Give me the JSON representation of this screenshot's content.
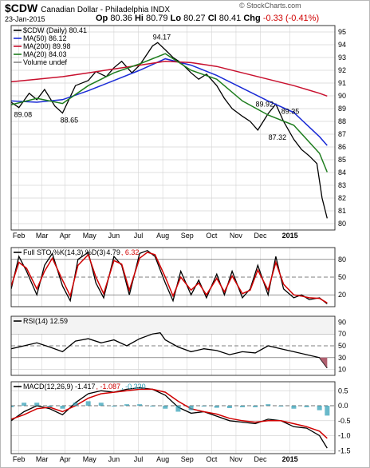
{
  "header": {
    "symbol": "$CDW",
    "name": "Canadian Dollar - Philadelphia INDX",
    "date": "23-Jan-2015",
    "open_label": "Op",
    "open": "80.36",
    "high_label": "Hi",
    "high": "80.79",
    "low_label": "Lo",
    "low": "80.27",
    "close_label": "Cl",
    "close": "80.41",
    "chg_label": "Chg",
    "chg": "-0.33 (-0.41%)",
    "site": "© StockCharts.com"
  },
  "chart_data": [
    {
      "type": "line",
      "title": "$CDW (Daily) 80.41",
      "legend": [
        {
          "label": "$CDW (Daily) 80.41",
          "color": "#000000"
        },
        {
          "label": "MA(50) 86.12",
          "color": "#1a2bd6"
        },
        {
          "label": "MA(200) 89.98",
          "color": "#c8102e"
        },
        {
          "label": "MA(20) 84.03",
          "color": "#1e7d1e"
        },
        {
          "label": "Volume undef",
          "color": "#888888"
        }
      ],
      "legend_placement": "top-left",
      "ylim": [
        79.5,
        95.5
      ],
      "yticks": [
        80,
        81,
        82,
        83,
        84,
        85,
        86,
        87,
        88,
        89,
        90,
        91,
        92,
        93,
        94,
        95
      ],
      "x_labels": [
        "Feb",
        "Mar",
        "Apr",
        "May",
        "Jun",
        "Jul",
        "Aug",
        "Sep",
        "Oct",
        "Nov",
        "Dec",
        "2015"
      ],
      "annotations": [
        {
          "text": "89.08",
          "x": 0.3,
          "y": 89.08
        },
        {
          "text": "88.65",
          "x": 2.1,
          "y": 88.65
        },
        {
          "text": "94.17",
          "x": 5.7,
          "y": 94.17
        },
        {
          "text": "89.92",
          "x": 9.7,
          "y": 89.92
        },
        {
          "text": "89.35",
          "x": 10.7,
          "y": 89.35
        },
        {
          "text": "87.32",
          "x": 10.2,
          "y": 87.32
        }
      ],
      "series": [
        {
          "name": "$CDW (Daily)",
          "color": "#000000",
          "x": [
            0,
            0.3,
            0.7,
            1,
            1.3,
            1.7,
            2,
            2.2,
            2.5,
            3,
            3.3,
            3.7,
            4,
            4.3,
            4.7,
            5,
            5.3,
            5.5,
            5.7,
            6,
            6.3,
            6.6,
            7,
            7.3,
            7.6,
            8,
            8.3,
            8.6,
            9,
            9.3,
            9.6,
            10,
            10.3,
            10.6,
            11,
            11.3,
            11.6,
            11.9,
            12.1,
            12.3
          ],
          "y": [
            89.5,
            89.08,
            90.2,
            89.7,
            90.5,
            89.2,
            88.65,
            89.5,
            90.8,
            91.2,
            91.9,
            91.5,
            92.2,
            92.7,
            91.8,
            92.4,
            93.3,
            93.9,
            94.17,
            93.6,
            93.0,
            92.6,
            91.8,
            91.3,
            91.7,
            90.8,
            89.8,
            89.0,
            88.4,
            88.0,
            87.32,
            88.6,
            89.35,
            88.0,
            86.6,
            85.8,
            85.3,
            84.7,
            82.0,
            80.41
          ]
        },
        {
          "name": "MA(50)",
          "color": "#1a2bd6",
          "x": [
            0,
            1,
            2,
            3,
            4,
            5,
            6,
            7,
            8,
            9,
            10,
            11,
            12,
            12.3
          ],
          "y": [
            89.6,
            89.5,
            89.7,
            90.4,
            91.2,
            92.0,
            92.9,
            92.4,
            91.6,
            90.6,
            89.6,
            88.7,
            86.8,
            86.12
          ]
        },
        {
          "name": "MA(200)",
          "color": "#c8102e",
          "x": [
            0,
            1,
            2,
            3,
            4,
            5,
            6,
            7,
            8,
            9,
            10,
            11,
            12,
            12.3
          ],
          "y": [
            91.1,
            91.3,
            91.5,
            91.8,
            92.1,
            92.4,
            92.7,
            92.6,
            92.3,
            91.8,
            91.3,
            90.8,
            90.2,
            89.98
          ]
        },
        {
          "name": "MA(20)",
          "color": "#1e7d1e",
          "x": [
            0,
            1,
            2,
            3,
            4,
            5,
            6,
            7,
            8,
            9,
            10,
            11,
            12,
            12.3
          ],
          "y": [
            89.3,
            89.8,
            89.4,
            90.8,
            91.8,
            92.5,
            93.3,
            92.0,
            91.3,
            89.6,
            88.5,
            87.7,
            85.5,
            84.03
          ]
        }
      ]
    },
    {
      "type": "line",
      "title": "Full STO %K(14,3) %D(3) 4.79, 6.32",
      "legend": [
        {
          "label": "Full STO %K(14,3) %D(3)",
          "color": "#000000"
        },
        {
          "label": "4.79",
          "color": "#000000"
        },
        {
          "label": "6.32",
          "color": "#d00000"
        }
      ],
      "ylim": [
        0,
        100
      ],
      "yticks": [
        20,
        50,
        80
      ],
      "series": [
        {
          "name": "%K",
          "color": "#000000",
          "x": [
            0,
            0.3,
            0.6,
            1,
            1.3,
            1.6,
            2,
            2.3,
            2.6,
            3,
            3.3,
            3.6,
            4,
            4.3,
            4.6,
            5,
            5.3,
            5.6,
            6,
            6.3,
            6.6,
            7,
            7.3,
            7.6,
            8,
            8.3,
            8.6,
            9,
            9.3,
            9.6,
            10,
            10.3,
            10.6,
            11,
            11.3,
            11.6,
            12,
            12.3
          ],
          "y": [
            30,
            85,
            60,
            20,
            70,
            90,
            35,
            10,
            80,
            92,
            40,
            15,
            85,
            70,
            20,
            90,
            95,
            85,
            40,
            10,
            60,
            20,
            45,
            15,
            55,
            20,
            60,
            15,
            30,
            70,
            20,
            85,
            30,
            15,
            20,
            12,
            15,
            4.79
          ]
        },
        {
          "name": "%D",
          "color": "#d00000",
          "x": [
            0,
            0.3,
            0.6,
            1,
            1.3,
            1.6,
            2,
            2.3,
            2.6,
            3,
            3.3,
            3.6,
            4,
            4.3,
            4.6,
            5,
            5.3,
            5.6,
            6,
            6.3,
            6.6,
            7,
            7.3,
            7.6,
            8,
            8.3,
            8.6,
            9,
            9.3,
            9.6,
            10,
            10.3,
            10.6,
            11,
            11.3,
            11.6,
            12,
            12.3
          ],
          "y": [
            35,
            75,
            65,
            30,
            60,
            82,
            45,
            18,
            70,
            88,
            50,
            22,
            78,
            72,
            28,
            82,
            92,
            88,
            50,
            18,
            50,
            28,
            40,
            20,
            48,
            25,
            52,
            22,
            28,
            62,
            28,
            75,
            38,
            20,
            18,
            15,
            14,
            6.32
          ]
        }
      ]
    },
    {
      "type": "line",
      "title": "RSI(14) 12.59",
      "legend": [
        {
          "label": "RSI(14) 12.59",
          "color": "#000000"
        }
      ],
      "ylim": [
        0,
        100
      ],
      "yticks": [
        10,
        30,
        50,
        70,
        90
      ],
      "series": [
        {
          "name": "RSI(14)",
          "color": "#000000",
          "x": [
            0,
            0.5,
            1,
            1.5,
            2,
            2.5,
            3,
            3.5,
            4,
            4.5,
            5,
            5.5,
            5.8,
            6,
            6.5,
            7,
            7.5,
            8,
            8.5,
            9,
            9.5,
            10,
            10.5,
            11,
            11.5,
            12,
            12.3
          ],
          "y": [
            45,
            50,
            55,
            48,
            40,
            58,
            62,
            55,
            60,
            50,
            62,
            70,
            72,
            60,
            48,
            40,
            45,
            42,
            35,
            40,
            38,
            50,
            45,
            40,
            35,
            30,
            12.59
          ]
        }
      ]
    },
    {
      "type": "line",
      "title": "MACD(12,26,9) -1.417, -1.087, -0.330",
      "legend": [
        {
          "label": "MACD(12,26,9) -1.417",
          "color": "#000000"
        },
        {
          "label": "-1.087",
          "color": "#d00000"
        },
        {
          "label": "-0.330",
          "color": "#2a9bb4"
        }
      ],
      "ylim": [
        -1.6,
        0.8
      ],
      "yticks": [
        0.5,
        0.0,
        -0.5,
        -1.0,
        -1.5
      ],
      "x_labels": [
        "Feb",
        "Mar",
        "Apr",
        "May",
        "Jun",
        "Jul",
        "Aug",
        "Sep",
        "Oct",
        "Nov",
        "Dec",
        "2015"
      ],
      "series": [
        {
          "name": "MACD",
          "color": "#000000",
          "x": [
            0,
            0.5,
            1,
            1.5,
            2,
            2.5,
            3,
            3.5,
            4,
            4.5,
            5,
            5.5,
            6,
            6.5,
            7,
            7.5,
            8,
            8.5,
            9,
            9.5,
            10,
            10.5,
            11,
            11.5,
            12,
            12.3
          ],
          "y": [
            -0.5,
            -0.2,
            0.0,
            -0.1,
            -0.3,
            0.1,
            0.4,
            0.5,
            0.45,
            0.55,
            0.6,
            0.55,
            0.35,
            -0.05,
            -0.25,
            -0.2,
            -0.35,
            -0.5,
            -0.55,
            -0.6,
            -0.45,
            -0.5,
            -0.7,
            -0.75,
            -1.0,
            -1.417
          ]
        },
        {
          "name": "Signal",
          "color": "#d00000",
          "x": [
            0,
            0.5,
            1,
            1.5,
            2,
            2.5,
            3,
            3.5,
            4,
            4.5,
            5,
            5.5,
            6,
            6.5,
            7,
            7.5,
            8,
            8.5,
            9,
            9.5,
            10,
            10.5,
            11,
            11.5,
            12,
            12.3
          ],
          "y": [
            -0.45,
            -0.3,
            -0.1,
            -0.05,
            -0.2,
            0.0,
            0.25,
            0.4,
            0.45,
            0.5,
            0.55,
            0.55,
            0.45,
            0.15,
            -0.1,
            -0.2,
            -0.28,
            -0.42,
            -0.5,
            -0.55,
            -0.5,
            -0.5,
            -0.6,
            -0.7,
            -0.85,
            -1.087
          ]
        },
        {
          "name": "Histogram",
          "color": "#2a9bb4",
          "kind": "bar",
          "x": [
            0,
            0.5,
            1,
            1.5,
            2,
            2.5,
            3,
            3.5,
            4,
            4.5,
            5,
            5.5,
            6,
            6.5,
            7,
            7.5,
            8,
            8.5,
            9,
            9.5,
            10,
            10.5,
            11,
            11.5,
            12,
            12.3
          ],
          "y": [
            -0.05,
            0.1,
            0.1,
            -0.05,
            -0.1,
            0.1,
            0.15,
            0.1,
            0.0,
            0.05,
            0.05,
            0.0,
            -0.1,
            -0.2,
            -0.15,
            0.0,
            -0.07,
            -0.08,
            -0.05,
            -0.05,
            0.05,
            0.0,
            -0.1,
            -0.05,
            -0.15,
            -0.33
          ]
        }
      ]
    }
  ]
}
